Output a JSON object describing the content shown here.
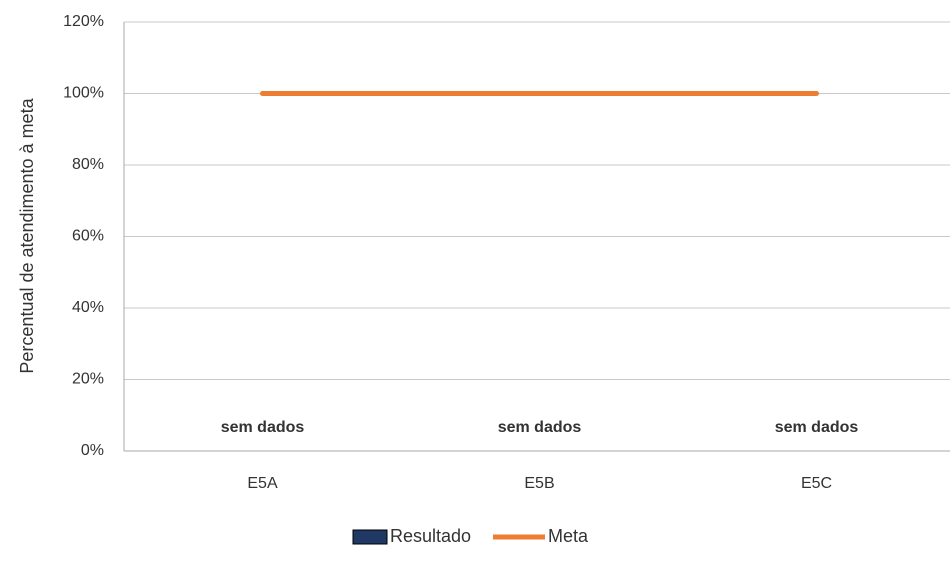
{
  "chart_data": {
    "type": "bar",
    "ylabel": "Percentual de atendimento à meta",
    "categories": [
      "E5A",
      "E5B",
      "E5C"
    ],
    "series": [
      {
        "name": "Resultado",
        "color": "#1f3864",
        "values": [
          null,
          null,
          null
        ],
        "value_labels": [
          "sem dados",
          "sem dados",
          "sem dados"
        ]
      },
      {
        "name": "Meta",
        "color": "#ed7d31",
        "type": "line",
        "values": [
          100,
          100,
          100
        ]
      }
    ],
    "ylim": [
      0,
      120
    ],
    "yticks": [
      {
        "value": 0,
        "label": "0%"
      },
      {
        "value": 20,
        "label": "20%"
      },
      {
        "value": 40,
        "label": "40%"
      },
      {
        "value": 60,
        "label": "60%"
      },
      {
        "value": 80,
        "label": "80%"
      },
      {
        "value": 100,
        "label": "100%"
      },
      {
        "value": 120,
        "label": "120%"
      }
    ],
    "grid": true,
    "legend": "bottom"
  }
}
